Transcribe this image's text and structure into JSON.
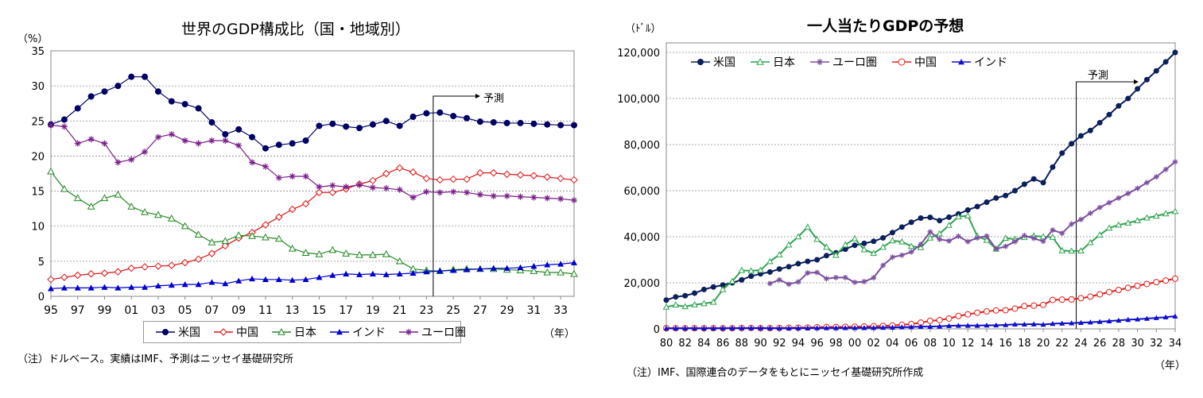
{
  "chart_data": [
    {
      "id": "left",
      "type": "line",
      "title": "世界のGDP構成比（国・地域別）",
      "ylabel": "（%）",
      "xlabel": "（年）",
      "ylim": [
        0,
        35
      ],
      "yticks": [
        0,
        5,
        10,
        15,
        20,
        25,
        30,
        35
      ],
      "x": [
        1995,
        1996,
        1997,
        1998,
        1999,
        2000,
        2001,
        2002,
        2003,
        2004,
        2005,
        2006,
        2007,
        2008,
        2009,
        2010,
        2011,
        2012,
        2013,
        2014,
        2015,
        2016,
        2017,
        2018,
        2019,
        2020,
        2021,
        2022,
        2023,
        2024,
        2025,
        2026,
        2027,
        2028,
        2029,
        2030,
        2031,
        2032,
        2033,
        2034
      ],
      "xtick_labels": [
        "95",
        "97",
        "99",
        "01",
        "03",
        "05",
        "07",
        "09",
        "11",
        "13",
        "15",
        "17",
        "19",
        "21",
        "23",
        "25",
        "27",
        "29",
        "31",
        "33"
      ],
      "grid": true,
      "legend_placement": "bottom",
      "annotation": {
        "label": "予測",
        "start_year": 2023.5
      },
      "series": [
        {
          "name": "米国",
          "color": "#000066",
          "marker": "circle-filled",
          "values": [
            24.5,
            25.2,
            26.8,
            28.5,
            29.2,
            30.0,
            31.3,
            31.3,
            29.2,
            27.8,
            27.4,
            26.8,
            24.8,
            23.1,
            23.8,
            22.7,
            21.1,
            21.6,
            21.8,
            22.2,
            24.3,
            24.6,
            24.2,
            24.0,
            24.5,
            25.0,
            24.3,
            25.6,
            26.1,
            26.2,
            25.7,
            25.4,
            24.9,
            24.8,
            24.7,
            24.7,
            24.6,
            24.5,
            24.4,
            24.4
          ]
        },
        {
          "name": "中国",
          "color": "#dd1111",
          "marker": "diamond-open",
          "values": [
            2.4,
            2.7,
            3.0,
            3.2,
            3.3,
            3.5,
            4.0,
            4.2,
            4.3,
            4.4,
            4.8,
            5.3,
            6.1,
            7.2,
            8.3,
            9.1,
            10.2,
            11.3,
            12.4,
            13.2,
            14.8,
            14.8,
            15.3,
            16.0,
            16.5,
            17.5,
            18.3,
            17.7,
            16.8,
            16.6,
            16.7,
            16.7,
            17.6,
            17.6,
            17.4,
            17.3,
            17.2,
            17.0,
            16.8,
            16.6
          ]
        },
        {
          "name": "日本",
          "color": "#228822",
          "marker": "triangle-open",
          "values": [
            17.8,
            15.3,
            14.0,
            12.8,
            14.0,
            14.5,
            12.8,
            12.0,
            11.6,
            11.1,
            10.0,
            8.8,
            7.7,
            7.9,
            8.7,
            8.6,
            8.4,
            8.2,
            6.8,
            6.2,
            6.0,
            6.6,
            6.1,
            5.9,
            5.9,
            6.0,
            5.0,
            3.9,
            3.7,
            3.6,
            3.8,
            3.9,
            3.9,
            3.9,
            3.8,
            3.7,
            3.6,
            3.4,
            3.4,
            3.2
          ]
        },
        {
          "name": "インド",
          "color": "#0000cc",
          "marker": "triangle-filled",
          "values": [
            1.1,
            1.2,
            1.2,
            1.2,
            1.3,
            1.2,
            1.3,
            1.3,
            1.5,
            1.6,
            1.7,
            1.7,
            2.0,
            1.8,
            2.2,
            2.5,
            2.4,
            2.4,
            2.3,
            2.4,
            2.7,
            3.0,
            3.2,
            3.1,
            3.2,
            3.1,
            3.2,
            3.3,
            3.5,
            3.6,
            3.7,
            3.8,
            3.9,
            4.0,
            4.0,
            4.1,
            4.3,
            4.5,
            4.6,
            4.8
          ]
        },
        {
          "name": "ユーロ圏",
          "color": "#7a1f8a",
          "marker": "star",
          "values": [
            24.4,
            24.2,
            21.8,
            22.4,
            21.8,
            19.1,
            19.5,
            20.6,
            22.7,
            23.1,
            22.2,
            21.8,
            22.2,
            22.2,
            21.5,
            19.1,
            18.5,
            16.9,
            17.1,
            17.1,
            15.6,
            15.8,
            15.6,
            15.9,
            15.5,
            15.4,
            15.2,
            14.1,
            14.9,
            14.8,
            14.9,
            14.8,
            14.5,
            14.3,
            14.3,
            14.2,
            14.1,
            14.0,
            13.9,
            13.7
          ]
        }
      ],
      "note": "（注）ドルベース。実績はIMF、予測はニッセイ基礎研究所"
    },
    {
      "id": "right",
      "type": "line",
      "title": "一人当たりGDPの予想",
      "ylabel": "（ﾄﾞﾙ）",
      "xlabel": "（年）",
      "ylim": [
        0,
        120000
      ],
      "yticks": [
        0,
        20000,
        40000,
        60000,
        80000,
        100000,
        120000
      ],
      "ytick_labels": [
        "0",
        "20,000",
        "40,000",
        "60,000",
        "80,000",
        "100,000",
        "120,000"
      ],
      "x": [
        1980,
        1981,
        1982,
        1983,
        1984,
        1985,
        1986,
        1987,
        1988,
        1989,
        1990,
        1991,
        1992,
        1993,
        1994,
        1995,
        1996,
        1997,
        1998,
        1999,
        2000,
        2001,
        2002,
        2003,
        2004,
        2005,
        2006,
        2007,
        2008,
        2009,
        2010,
        2011,
        2012,
        2013,
        2014,
        2015,
        2016,
        2017,
        2018,
        2019,
        2020,
        2021,
        2022,
        2023,
        2024,
        2025,
        2026,
        2027,
        2028,
        2029,
        2030,
        2031,
        2032,
        2033,
        2034
      ],
      "xtick_labels": [
        "80",
        "82",
        "84",
        "86",
        "88",
        "90",
        "92",
        "94",
        "96",
        "98",
        "00",
        "02",
        "04",
        "06",
        "08",
        "10",
        "12",
        "14",
        "16",
        "18",
        "20",
        "22",
        "24",
        "26",
        "28",
        "30",
        "32",
        "34"
      ],
      "grid": true,
      "legend_placement": "top-left",
      "annotation": {
        "label": "予測",
        "start_year": 2023.5
      },
      "series": [
        {
          "name": "米国",
          "color": "#0a1f5c",
          "marker": "circle-filled",
          "values": [
            12500,
            13900,
            14400,
            15500,
            17100,
            18200,
            19000,
            20000,
            21300,
            22900,
            23900,
            24700,
            26000,
            27000,
            28300,
            29300,
            30000,
            31800,
            33000,
            34600,
            36300,
            37100,
            38000,
            39500,
            41800,
            44200,
            46300,
            48100,
            48400,
            47000,
            48500,
            49900,
            51600,
            53100,
            55000,
            56800,
            57900,
            60000,
            62800,
            65100,
            63500,
            70200,
            76300,
            80400,
            83800,
            86100,
            89500,
            93000,
            96800,
            100000,
            104200,
            108200,
            112000,
            115900,
            120000
          ]
        },
        {
          "name": "日本",
          "color": "#2ea44f",
          "marker": "triangle-open",
          "values": [
            9500,
            10400,
            9700,
            10500,
            11000,
            11600,
            17100,
            20700,
            25400,
            25200,
            25500,
            29300,
            32200,
            36500,
            40000,
            44200,
            38900,
            35500,
            32000,
            36500,
            39200,
            34400,
            32800,
            35500,
            38300,
            37800,
            35900,
            35300,
            39500,
            41300,
            45000,
            48700,
            49100,
            40300,
            38500,
            34700,
            39400,
            38900,
            39700,
            40400,
            40000,
            39800,
            34000,
            33800,
            33900,
            37500,
            40800,
            43800,
            45100,
            46000,
            47000,
            48200,
            49000,
            50000,
            51000
          ]
        },
        {
          "name": "ユーロ圏",
          "color": "#7b4fa0",
          "marker": "star",
          "values": [
            null,
            null,
            null,
            null,
            null,
            null,
            null,
            null,
            null,
            null,
            null,
            19700,
            21300,
            19400,
            20400,
            24300,
            24500,
            21800,
            22300,
            22300,
            20200,
            20500,
            22200,
            27600,
            31100,
            32000,
            33400,
            36700,
            42100,
            38900,
            38200,
            40200,
            37900,
            39500,
            40300,
            34700,
            35800,
            37900,
            40500,
            39300,
            38000,
            42900,
            41500,
            45500,
            47500,
            50200,
            52700,
            54800,
            56800,
            58800,
            61000,
            63500,
            66000,
            69200,
            72500
          ]
        },
        {
          "name": "中国",
          "color": "#e0201b",
          "marker": "circle-open",
          "values": [
            300,
            300,
            300,
            300,
            300,
            300,
            300,
            300,
            400,
            400,
            350,
            350,
            400,
            500,
            500,
            600,
            700,
            800,
            800,
            900,
            950,
            1050,
            1150,
            1300,
            1500,
            1750,
            2100,
            2700,
            3500,
            3800,
            4500,
            5600,
            6300,
            7000,
            7600,
            8000,
            8100,
            8800,
            9900,
            10100,
            10400,
            12600,
            12700,
            12800,
            13300,
            14000,
            15000,
            16000,
            16900,
            17800,
            18700,
            19500,
            20300,
            21000,
            21800
          ]
        },
        {
          "name": "インド",
          "color": "#1010cc",
          "marker": "triangle-filled",
          "values": [
            270,
            280,
            280,
            280,
            280,
            290,
            300,
            330,
            350,
            350,
            370,
            300,
            320,
            300,
            350,
            380,
            400,
            420,
            420,
            440,
            440,
            460,
            480,
            560,
            640,
            730,
            800,
            1000,
            1000,
            1100,
            1350,
            1450,
            1450,
            1450,
            1560,
            1600,
            1720,
            1980,
            1980,
            2050,
            1900,
            2250,
            2400,
            2500,
            2700,
            2900,
            3100,
            3400,
            3700,
            4000,
            4200,
            4500,
            4800,
            5100,
            5500
          ]
        }
      ],
      "note": "（注）IMF、国際連合のデータをもとにニッセイ基礎研究所作成"
    }
  ]
}
